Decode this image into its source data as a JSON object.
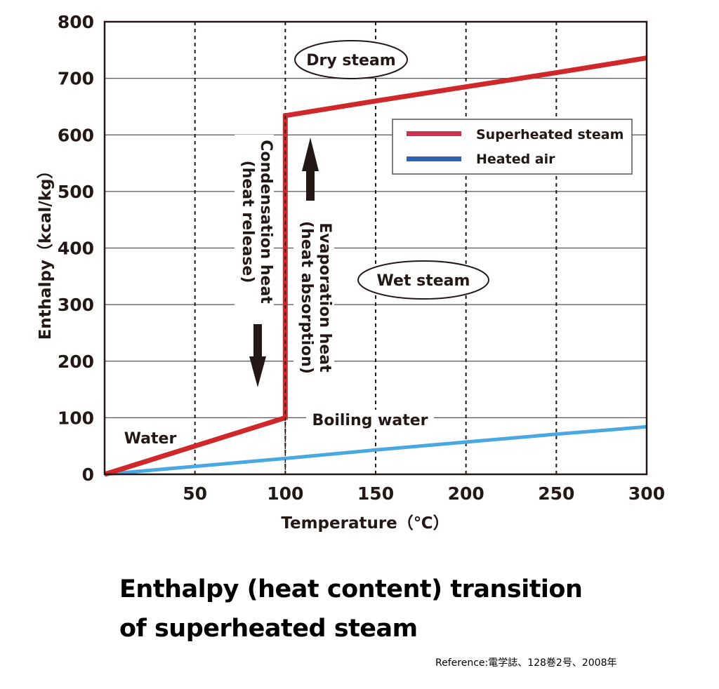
{
  "chart_data": {
    "type": "line",
    "title": "Enthalpy (heat content) transition of superheated steam",
    "xlabel": "Temperature（℃）",
    "ylabel": "Enthalpy（kcal/kg）",
    "xlim": [
      0,
      300
    ],
    "ylim": [
      0,
      800
    ],
    "x_ticks": [
      "50",
      "100",
      "150",
      "200",
      "250",
      "300"
    ],
    "y_ticks": [
      "0",
      "100",
      "200",
      "300",
      "400",
      "500",
      "600",
      "700",
      "800"
    ],
    "grid": {
      "horizontal": "solid",
      "vertical": "dashed"
    },
    "legend_position": "upper right",
    "series": [
      {
        "name": "Superheated steam",
        "color": "#d0282a",
        "legend_color": "#d13050",
        "points": [
          [
            0,
            0
          ],
          [
            100,
            100
          ],
          [
            100,
            634
          ],
          [
            150,
            660
          ],
          [
            200,
            685
          ],
          [
            250,
            710
          ],
          [
            300,
            736
          ]
        ]
      },
      {
        "name": "Heated air",
        "color": "#4aa8e0",
        "legend_color": "#2c64b0",
        "points": [
          [
            0,
            0
          ],
          [
            50,
            14
          ],
          [
            100,
            28
          ],
          [
            150,
            43
          ],
          [
            200,
            57
          ],
          [
            250,
            71
          ],
          [
            300,
            84
          ]
        ]
      }
    ],
    "annotations": [
      {
        "text": "Dry steam",
        "style": "ellipse"
      },
      {
        "text": "Wet steam",
        "style": "ellipse"
      },
      {
        "text": "Water"
      },
      {
        "text": "Boiling water"
      },
      {
        "text": "Condensation heat",
        "sub": "(heat release)",
        "arrow": "down"
      },
      {
        "text": "Evaporation heat",
        "sub": "(heat absorption)",
        "arrow": "up"
      }
    ]
  },
  "caption": {
    "line1": "Enthalpy (heat content) transition",
    "line2": "of superheated steam"
  },
  "reference": "Reference:電学誌、128巻2号、2008年"
}
